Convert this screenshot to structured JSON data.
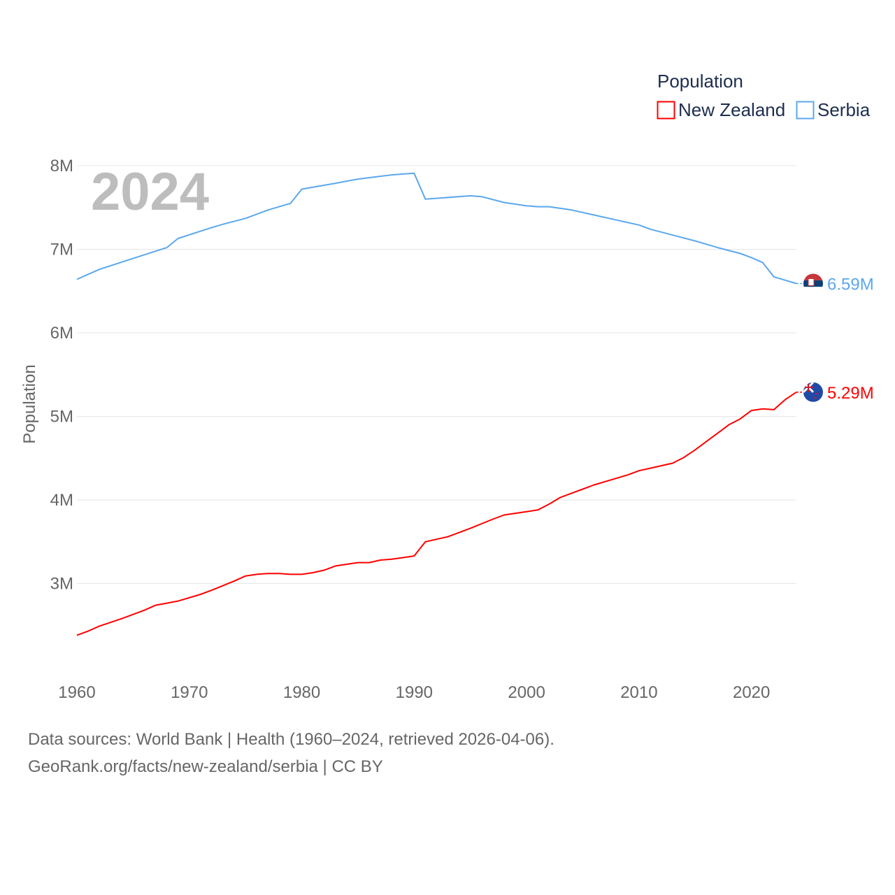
{
  "chart_data": {
    "type": "line",
    "title": "Population",
    "ylabel": "Population",
    "xlabel": "",
    "year_label": "2024",
    "xlim": [
      1960,
      2024
    ],
    "ylim": [
      2000000,
      8000000
    ],
    "x_ticks": [
      "1960",
      "1970",
      "1980",
      "1990",
      "2000",
      "2010",
      "2020"
    ],
    "y_ticks": [
      {
        "value": 3000000,
        "label": "3M"
      },
      {
        "value": 4000000,
        "label": "4M"
      },
      {
        "value": 5000000,
        "label": "5M"
      },
      {
        "value": 6000000,
        "label": "6M"
      },
      {
        "value": 7000000,
        "label": "7M"
      },
      {
        "value": 8000000,
        "label": "8M"
      }
    ],
    "grid": true,
    "legend_placement": "top-right",
    "legend_title": "Population",
    "series": [
      {
        "name": "New Zealand",
        "color": "#ff0000",
        "end_label": "5.29M",
        "flag": "new-zealand-flag",
        "x": [
          1960,
          1961,
          1962,
          1964,
          1966,
          1967,
          1969,
          1971,
          1972,
          1974,
          1975,
          1976,
          1977,
          1978,
          1979,
          1980,
          1981,
          1982,
          1983,
          1984,
          1985,
          1986,
          1987,
          1988,
          1989,
          1990,
          1991,
          1993,
          1995,
          1997,
          1998,
          2000,
          2001,
          2002,
          2003,
          2004,
          2005,
          2006,
          2008,
          2009,
          2010,
          2011,
          2012,
          2013,
          2014,
          2015,
          2016,
          2017,
          2018,
          2019,
          2020,
          2021,
          2022,
          2023,
          2024
        ],
        "values": [
          2.38,
          2.43,
          2.49,
          2.58,
          2.68,
          2.74,
          2.79,
          2.87,
          2.92,
          3.03,
          3.09,
          3.11,
          3.12,
          3.12,
          3.11,
          3.11,
          3.13,
          3.16,
          3.21,
          3.23,
          3.25,
          3.25,
          3.28,
          3.29,
          3.31,
          3.33,
          3.5,
          3.56,
          3.66,
          3.77,
          3.82,
          3.86,
          3.88,
          3.95,
          4.03,
          4.08,
          4.13,
          4.18,
          4.26,
          4.3,
          4.35,
          4.38,
          4.41,
          4.44,
          4.51,
          4.6,
          4.7,
          4.8,
          4.9,
          4.97,
          5.07,
          5.09,
          5.08,
          5.2,
          5.29
        ],
        "unit": "millions"
      },
      {
        "name": "Serbia",
        "color": "#5ba8ec",
        "end_label": "6.59M",
        "flag": "serbia-flag",
        "x": [
          1960,
          1962,
          1965,
          1968,
          1969,
          1972,
          1973,
          1975,
          1977,
          1979,
          1980,
          1983,
          1985,
          1988,
          1990,
          1991,
          1995,
          1996,
          1998,
          2000,
          2001,
          2002,
          2004,
          2006,
          2008,
          2010,
          2011,
          2013,
          2015,
          2017,
          2019,
          2020,
          2021,
          2022,
          2024
        ],
        "values": [
          6.64,
          6.76,
          6.89,
          7.02,
          7.13,
          7.26,
          7.3,
          7.37,
          7.47,
          7.55,
          7.72,
          7.79,
          7.84,
          7.89,
          7.91,
          7.6,
          7.64,
          7.63,
          7.56,
          7.52,
          7.51,
          7.51,
          7.47,
          7.41,
          7.35,
          7.29,
          7.24,
          7.17,
          7.1,
          7.02,
          6.95,
          6.9,
          6.84,
          6.67,
          6.59
        ],
        "unit": "millions"
      }
    ]
  },
  "footer": {
    "line1": "Data sources: World Bank | Health (1960–2024, retrieved 2026-04-06).",
    "line2": "GeoRank.org/facts/new-zealand/serbia | CC BY"
  }
}
